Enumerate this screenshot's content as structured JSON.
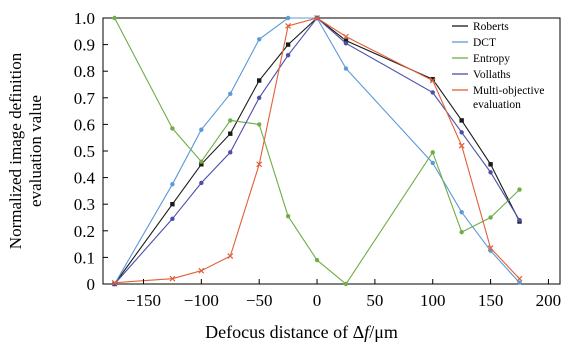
{
  "chart_data": {
    "type": "line",
    "xlabel_prefix": "Defocus distance of Δ",
    "xlabel_var": "f",
    "xlabel_suffix": "/μm",
    "ylabel_line1": "Normalized image definition",
    "ylabel_line2": "evaluation value",
    "xlim": [
      -185,
      210
    ],
    "ylim": [
      0,
      1.0
    ],
    "x_ticks": [
      -150,
      -100,
      -50,
      0,
      50,
      100,
      150,
      200
    ],
    "x_tick_labels": [
      "−150",
      "−100",
      "−50",
      "0",
      "50",
      "100",
      "150",
      "200"
    ],
    "y_ticks": [
      0,
      0.1,
      0.2,
      0.3,
      0.4,
      0.5,
      0.6,
      0.7,
      0.8,
      0.9,
      1.0
    ],
    "y_tick_labels": [
      "0",
      "0.1",
      "0.2",
      "0.3",
      "0.4",
      "0.5",
      "0.6",
      "0.7",
      "0.8",
      "0.9",
      "1.0"
    ],
    "legend_position": "top-right",
    "grid": false,
    "series": [
      {
        "name": "Roberts",
        "color": "#1a1a1a",
        "marker": "square",
        "points": [
          [
            -175,
            0.0
          ],
          [
            -125,
            0.3
          ],
          [
            -100,
            0.45
          ],
          [
            -75,
            0.565
          ],
          [
            -50,
            0.765
          ],
          [
            -25,
            0.9
          ],
          [
            0,
            1.0
          ],
          [
            25,
            0.915
          ],
          [
            100,
            0.77
          ],
          [
            125,
            0.615
          ],
          [
            150,
            0.45
          ],
          [
            175,
            0.235
          ]
        ]
      },
      {
        "name": "DCT",
        "color": "#5b9bd5",
        "marker": "dot",
        "points": [
          [
            -175,
            0.0
          ],
          [
            -125,
            0.375
          ],
          [
            -100,
            0.58
          ],
          [
            -75,
            0.715
          ],
          [
            -50,
            0.92
          ],
          [
            -25,
            1.0
          ],
          [
            0,
            1.0
          ],
          [
            25,
            0.81
          ],
          [
            100,
            0.455
          ],
          [
            125,
            0.27
          ],
          [
            150,
            0.125
          ],
          [
            175,
            0.005
          ]
        ]
      },
      {
        "name": "Entropy",
        "color": "#70ad47",
        "marker": "dot",
        "points": [
          [
            -175,
            1.0
          ],
          [
            -125,
            0.585
          ],
          [
            -100,
            0.46
          ],
          [
            -75,
            0.615
          ],
          [
            -50,
            0.6
          ],
          [
            -25,
            0.255
          ],
          [
            0,
            0.09
          ],
          [
            25,
            0.0
          ],
          [
            100,
            0.495
          ],
          [
            125,
            0.195
          ],
          [
            150,
            0.25
          ],
          [
            175,
            0.355
          ]
        ]
      },
      {
        "name": "Vollaths",
        "color": "#4a4fa8",
        "marker": "dot",
        "points": [
          [
            -175,
            0.0
          ],
          [
            -125,
            0.245
          ],
          [
            -100,
            0.38
          ],
          [
            -75,
            0.495
          ],
          [
            -50,
            0.7
          ],
          [
            -25,
            0.86
          ],
          [
            0,
            1.0
          ],
          [
            25,
            0.905
          ],
          [
            100,
            0.72
          ],
          [
            125,
            0.57
          ],
          [
            150,
            0.42
          ],
          [
            175,
            0.24
          ]
        ]
      },
      {
        "name": "Multi-objective evaluation",
        "legend_lines": [
          "Multi-objective",
          "evaluation"
        ],
        "color": "#e0603a",
        "marker": "cross",
        "points": [
          [
            -175,
            0.005
          ],
          [
            -125,
            0.02
          ],
          [
            -100,
            0.05
          ],
          [
            -75,
            0.105
          ],
          [
            -50,
            0.45
          ],
          [
            -25,
            0.97
          ],
          [
            0,
            1.0
          ],
          [
            25,
            0.93
          ],
          [
            100,
            0.765
          ],
          [
            125,
            0.52
          ],
          [
            150,
            0.135
          ],
          [
            175,
            0.02
          ]
        ]
      }
    ]
  }
}
